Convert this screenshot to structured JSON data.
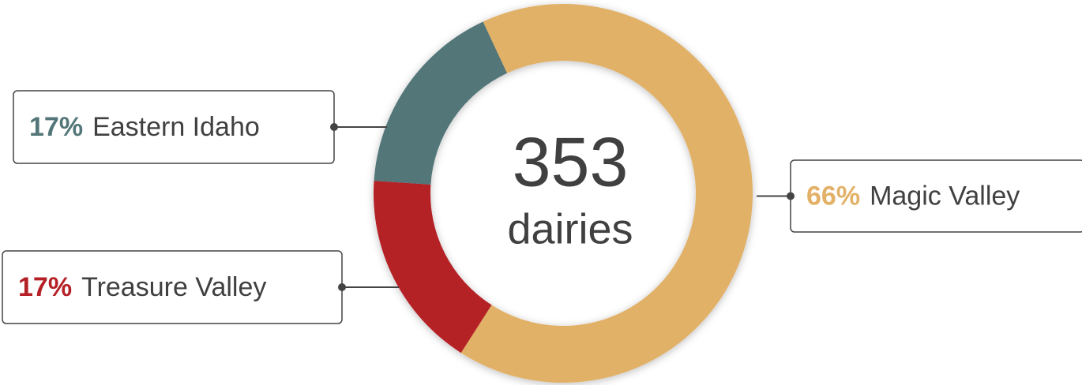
{
  "chart_data": {
    "type": "pie",
    "donut": true,
    "center_value": "353",
    "center_label": "dairies",
    "categories": [
      "Magic Valley",
      "Treasure Valley",
      "Eastern Idaho"
    ],
    "values": [
      66,
      17,
      17
    ],
    "value_labels": [
      "66%",
      "17%",
      "17%"
    ],
    "colors": [
      "#e2b167",
      "#b52026",
      "#537679"
    ]
  }
}
